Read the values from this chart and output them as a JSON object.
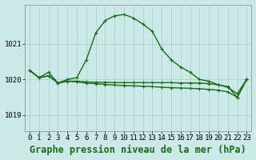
{
  "bg_color": "#cce8e8",
  "grid_color": "#aacccc",
  "line_color": "#1a6b1a",
  "title": "Graphe pression niveau de la mer (hPa)",
  "xlim": [
    -0.5,
    23.5
  ],
  "ylim": [
    1018.55,
    1022.1
  ],
  "yticks": [
    1019,
    1020,
    1021
  ],
  "xticks": [
    0,
    1,
    2,
    3,
    4,
    5,
    6,
    7,
    8,
    9,
    10,
    11,
    12,
    13,
    14,
    15,
    16,
    17,
    18,
    19,
    20,
    21,
    22,
    23
  ],
  "line1": [
    1020.25,
    1020.05,
    1020.2,
    1019.9,
    1020.0,
    1020.05,
    1020.55,
    1021.3,
    1021.65,
    1021.78,
    1021.82,
    1021.72,
    1021.55,
    1021.35,
    1020.85,
    1020.55,
    1020.35,
    1020.2,
    1020.0,
    1019.95,
    1019.85,
    1019.8,
    1019.5,
    1020.0
  ],
  "line2": [
    1020.25,
    1020.05,
    1020.1,
    1019.9,
    1019.95,
    1019.95,
    1019.93,
    1019.92,
    1019.92,
    1019.91,
    1019.91,
    1019.91,
    1019.91,
    1019.91,
    1019.91,
    1019.91,
    1019.9,
    1019.9,
    1019.9,
    1019.88,
    1019.85,
    1019.78,
    1019.6,
    1020.0
  ],
  "line3": [
    1020.25,
    1020.05,
    1020.1,
    1019.9,
    1019.95,
    1019.93,
    1019.9,
    1019.88,
    1019.86,
    1019.84,
    1019.83,
    1019.82,
    1019.81,
    1019.8,
    1019.78,
    1019.77,
    1019.76,
    1019.75,
    1019.74,
    1019.72,
    1019.7,
    1019.65,
    1019.5,
    1020.0
  ],
  "marker": "+",
  "markersize": 3.5,
  "linewidth": 1.0,
  "title_fontsize": 8.5,
  "tick_fontsize": 6.5,
  "figsize": [
    3.2,
    2.0
  ],
  "dpi": 100
}
